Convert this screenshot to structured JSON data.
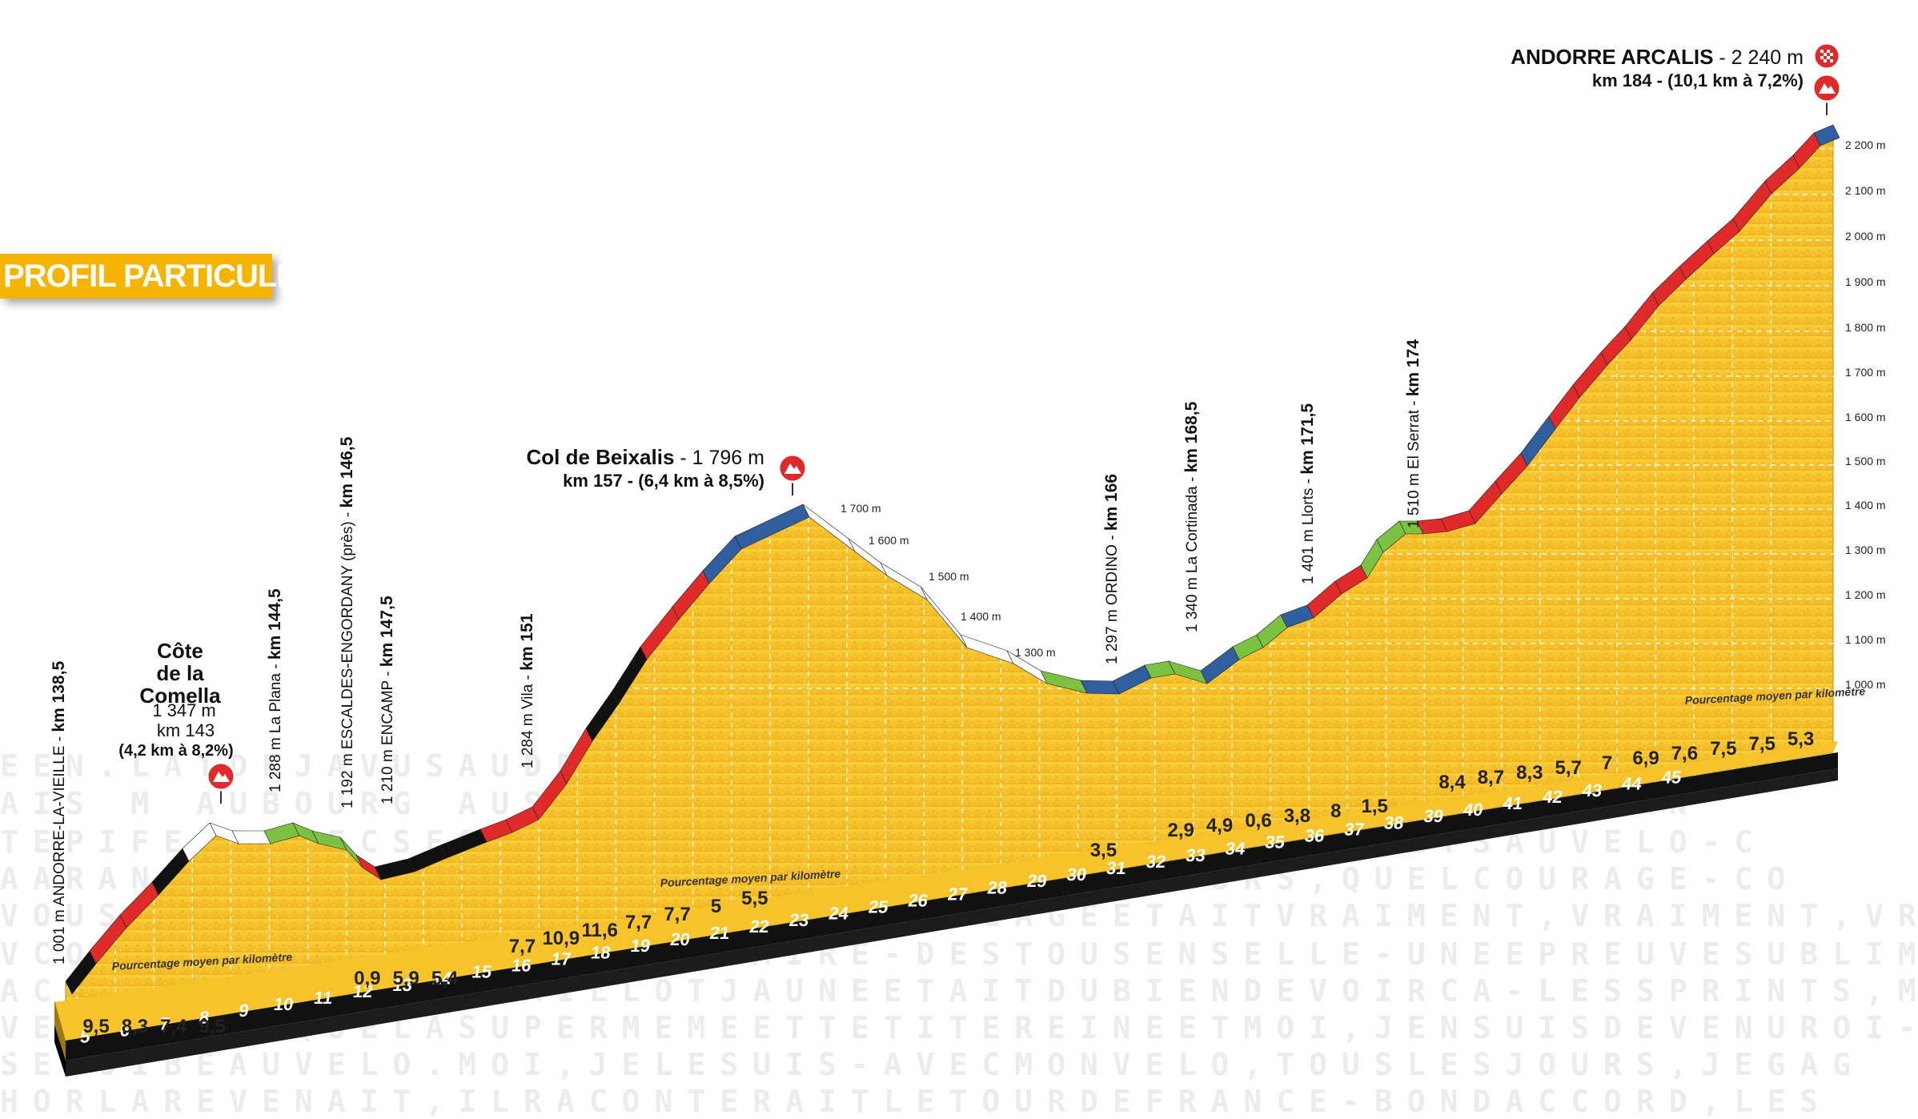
{
  "banner": "PROFIL PARTICULIER",
  "summits": {
    "comella": {
      "line1": "Côte",
      "line2": "de la",
      "line3": "Comella",
      "alt": "1 347 m",
      "km": "km 143",
      "climb": "(4,2 km à 8,2%)"
    },
    "beixalis": {
      "name": "Col de Beixalis",
      "alt": " - 1 796 m",
      "line2": "km 157 - (6,4 km à 8,5%)"
    },
    "arcalis": {
      "name": "ANDORRE ARCALIS",
      "alt": " - 2 240 m",
      "line2": "km 184 - (10,1 km à 7,2%)"
    }
  },
  "waypoints": [
    {
      "alt": "1 001 m",
      "name": "ANDORRE-LA-VIEILLE",
      "km": "km 138,5"
    },
    {
      "alt": "1 288 m",
      "name": "La Plana",
      "km": "km 144,5"
    },
    {
      "alt": "1 192 m",
      "name": "ESCALDES-ENGORDANY (près)",
      "km": "km 146,5"
    },
    {
      "alt": "1 210 m",
      "name": "ENCAMP",
      "km": "km 147,5"
    },
    {
      "alt": "1 284 m",
      "name": "Vila",
      "km": "km 151"
    },
    {
      "alt": "1 297 m",
      "name": "ORDINO",
      "km": "km 166"
    },
    {
      "alt": "1 340 m",
      "name": "La Cortinada",
      "km": "km 168,5"
    },
    {
      "alt": "1 401 m",
      "name": "Llorts",
      "km": "km 171,5"
    },
    {
      "alt": "1 510 m",
      "name": "El Serrat",
      "km": "km 174"
    }
  ],
  "altitude_ticks": [
    "2 200 m",
    "2 100 m",
    "2 000 m",
    "1 900 m",
    "1 800 m",
    "1 700 m",
    "1 600 m",
    "1 500 m",
    "1 400 m",
    "1 300 m",
    "1 200 m",
    "1 100 m",
    "1 000 m"
  ],
  "inner_altitude_labels": [
    "1 700 m",
    "1 600 m",
    "1 500 m",
    "1 400 m",
    "1 300 m"
  ],
  "percent_caption": "Pourcentage moyen par kilomètre",
  "km_markers": [
    "1",
    "2",
    "3",
    "4",
    "5",
    "6",
    "7",
    "8",
    "9",
    "10",
    "11",
    "12",
    "13",
    "14",
    "15",
    "16",
    "17",
    "18",
    "19",
    "20",
    "21",
    "22",
    "23",
    "24",
    "25",
    "26",
    "27",
    "28",
    "29",
    "30",
    "31",
    "32",
    "33",
    "34",
    "35",
    "36",
    "37",
    "38",
    "39",
    "40",
    "41",
    "42",
    "43",
    "44",
    "45"
  ],
  "km_percents": [
    "9,5",
    "8,3",
    "7,4",
    "9,5",
    "",
    "",
    "",
    "0,9",
    "5,9",
    "5,4",
    "",
    "7,7",
    "10,9",
    "11,6",
    "7,7",
    "7,7",
    "5",
    "5,5",
    "",
    "",
    "",
    "",
    "",
    "",
    "",
    "",
    "3,5",
    "",
    "2,9",
    "4,9",
    "0,6",
    "3,8",
    "8",
    "1,5",
    "",
    "8,4",
    "8,7",
    "8,3",
    "5,7",
    "7",
    "6,9",
    "7,6",
    "7,5",
    "7,5",
    "5,3"
  ],
  "background_text": [
    "EEN.LATDEJAVUSAUDELAMURFANFARON-LEJOURETTOTAVANT-JEPRA",
    "AIS M AUBOURG AUSSIJERONDDDOCEALEINSUNSECOURSEPARIAN",
    "TEPIFELEAVECSESAMISQUEJEPARLESIJESSUISSEMEMETSAUVELO-C",
    "AARANDEVELOUNFOURDELACOURSEETDESCOUREURS,QUELCOURAGE-CO",
    "VOUSTAITAGONEDELUMIERESURMONVILAGEETAITVRAIMENT,VRAIMENT,VRA",
    "VCOMMEUNFFISTECURESANSFAIRE-DESTOUSENSELLE-UNEEPREUVESUBLIMEDAN",
    "ACKDESIGNAVECUNMAILLOTJAUNEETAITDUBIENDEVOIRCA-LESSPRINTS,MAISQUELL",
    "VERTUETCEQUELASUPERMEMEETTETITEREINEETMOI,JENSUISDEVENUROI-BRAVOETMERC",
    "SEMOIBEAUVELO.MOI,JELESUIS-AVECMONVELO,TOUSLESJOURS,JEGAG",
    "HORLAREVENAIT,ILRACONTERAITLETOURDEFRANCE-BONDACCORD,LES"
  ]
}
